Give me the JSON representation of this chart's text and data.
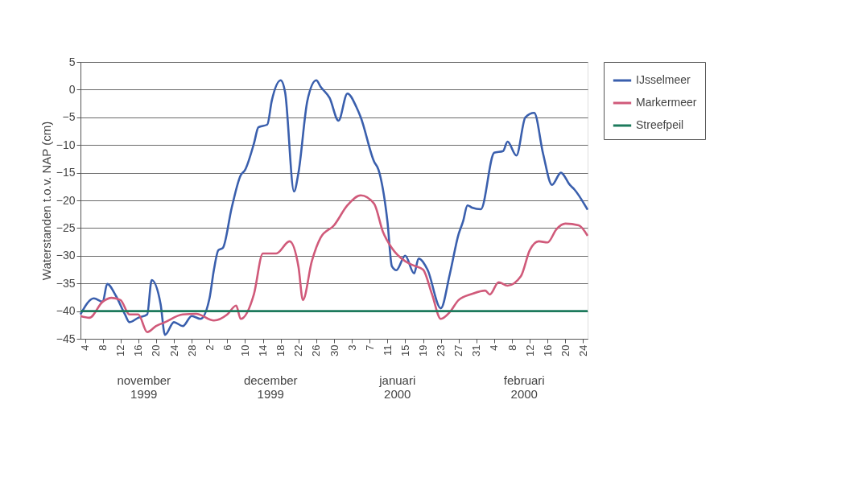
{
  "chart_data": {
    "type": "line",
    "ylabel": "Waterstanden t.o.v. NAP (cm)",
    "xlim": [
      "1999-11-03",
      "2000-02-25"
    ],
    "ylim": [
      -45,
      5
    ],
    "yticks": [
      -45,
      -40,
      -35,
      -30,
      -25,
      -20,
      -15,
      -10,
      -5,
      0,
      5
    ],
    "xticks": [
      {
        "value": "1999-11-04",
        "label": "4"
      },
      {
        "value": "1999-11-08",
        "label": "8"
      },
      {
        "value": "1999-11-12",
        "label": "12"
      },
      {
        "value": "1999-11-16",
        "label": "16"
      },
      {
        "value": "1999-11-20",
        "label": "20"
      },
      {
        "value": "1999-11-24",
        "label": "24"
      },
      {
        "value": "1999-11-28",
        "label": "28"
      },
      {
        "value": "1999-12-02",
        "label": "2"
      },
      {
        "value": "1999-12-06",
        "label": "6"
      },
      {
        "value": "1999-12-10",
        "label": "10"
      },
      {
        "value": "1999-12-14",
        "label": "14"
      },
      {
        "value": "1999-12-18",
        "label": "18"
      },
      {
        "value": "1999-12-22",
        "label": "22"
      },
      {
        "value": "1999-12-26",
        "label": "26"
      },
      {
        "value": "1999-12-30",
        "label": "30"
      },
      {
        "value": "2000-01-03",
        "label": "3"
      },
      {
        "value": "2000-01-07",
        "label": "7"
      },
      {
        "value": "2000-01-11",
        "label": "11"
      },
      {
        "value": "2000-01-15",
        "label": "15"
      },
      {
        "value": "2000-01-19",
        "label": "19"
      },
      {
        "value": "2000-01-23",
        "label": "23"
      },
      {
        "value": "2000-01-27",
        "label": "27"
      },
      {
        "value": "2000-01-31",
        "label": "31"
      },
      {
        "value": "2000-02-04",
        "label": "4"
      },
      {
        "value": "2000-02-08",
        "label": "8"
      },
      {
        "value": "2000-02-12",
        "label": "12"
      },
      {
        "value": "2000-02-16",
        "label": "16"
      },
      {
        "value": "2000-02-20",
        "label": "20"
      },
      {
        "value": "2000-02-24",
        "label": "24"
      }
    ],
    "grid": "y",
    "legend": "right",
    "line_style": "solid",
    "marker": "none",
    "annotations": [
      "november\n1999",
      "december\n1999",
      "januari\n2000",
      "februari\n2000"
    ],
    "series": [
      {
        "name": "IJsselmeer",
        "color": "#3a5fad",
        "x": [
          "1999-11-03",
          "1999-11-06",
          "1999-11-08",
          "1999-11-09",
          "1999-11-11",
          "1999-11-13",
          "1999-11-14",
          "1999-11-16",
          "1999-11-18",
          "1999-11-19",
          "1999-11-21",
          "1999-11-22",
          "1999-11-24",
          "1999-11-26",
          "1999-11-28",
          "1999-11-30",
          "1999-12-02",
          "1999-12-03",
          "1999-12-04",
          "1999-12-05",
          "1999-12-07",
          "1999-12-09",
          "1999-12-10",
          "1999-12-12",
          "1999-12-13",
          "1999-12-15",
          "1999-12-16",
          "1999-12-18",
          "1999-12-19",
          "1999-12-21",
          "1999-12-22",
          "1999-12-24",
          "1999-12-26",
          "1999-12-27",
          "1999-12-29",
          "1999-12-31",
          "2000-01-02",
          "2000-01-04",
          "2000-01-05",
          "2000-01-08",
          "2000-01-09",
          "2000-01-11",
          "2000-01-12",
          "2000-01-13",
          "2000-01-15",
          "2000-01-17",
          "2000-01-18",
          "2000-01-20",
          "2000-01-23",
          "2000-01-25",
          "2000-01-27",
          "2000-01-28",
          "2000-01-29",
          "2000-01-30",
          "2000-02-01",
          "2000-02-04",
          "2000-02-06",
          "2000-02-07",
          "2000-02-09",
          "2000-02-11",
          "2000-02-13",
          "2000-02-15",
          "2000-02-17",
          "2000-02-19",
          "2000-02-21",
          "2000-02-22",
          "2000-02-25"
        ],
        "values": [
          -40.6,
          -37.7,
          -38.3,
          -35.1,
          -37.3,
          -40.6,
          -42,
          -41.2,
          -40.6,
          -34.4,
          -38.7,
          -44.3,
          -42,
          -42.7,
          -40.9,
          -41.4,
          -37.7,
          -32.5,
          -29,
          -28.6,
          -21.3,
          -15.5,
          -14.5,
          -9.7,
          -6.8,
          -6.3,
          -2,
          1.7,
          -0.5,
          -18.4,
          -15,
          -2,
          1.7,
          0.5,
          -1.5,
          -5.6,
          -0.7,
          -3.1,
          -5,
          -13,
          -14.5,
          -23.8,
          -31.9,
          -32.6,
          -30,
          -33.2,
          -30.5,
          -32.5,
          -39.5,
          -33.4,
          -26.1,
          -23.8,
          -20.9,
          -21.3,
          -21.6,
          -11.4,
          -11.1,
          -9.4,
          -11.9,
          -5,
          -4.2,
          -11.6,
          -17.2,
          -15,
          -17.2,
          -18,
          -21.7
        ]
      },
      {
        "name": "Markermeer",
        "color": "#d05a7a",
        "x": [
          "1999-11-03",
          "1999-11-05",
          "1999-11-08",
          "1999-11-10",
          "1999-11-12",
          "1999-11-14",
          "1999-11-16",
          "1999-11-18",
          "1999-11-20",
          "1999-11-22",
          "1999-11-26",
          "1999-11-29",
          "1999-12-03",
          "1999-12-06",
          "1999-12-08",
          "1999-12-09",
          "1999-12-12",
          "1999-12-14",
          "1999-12-17",
          "1999-12-20",
          "1999-12-22",
          "1999-12-23",
          "1999-12-25",
          "1999-12-27",
          "1999-12-30",
          "2000-01-02",
          "2000-01-05",
          "2000-01-08",
          "2000-01-10",
          "2000-01-12",
          "2000-01-15",
          "2000-01-17",
          "2000-01-19",
          "2000-01-21",
          "2000-01-23",
          "2000-01-25",
          "2000-01-27",
          "2000-01-30",
          "2000-02-02",
          "2000-02-03",
          "2000-02-05",
          "2000-02-07",
          "2000-02-10",
          "2000-02-12",
          "2000-02-14",
          "2000-02-16",
          "2000-02-18",
          "2000-02-20",
          "2000-02-23",
          "2000-02-25"
        ],
        "values": [
          -40.9,
          -41.2,
          -38.3,
          -37.6,
          -38,
          -40.6,
          -40.6,
          -43.8,
          -42.7,
          -42,
          -40.6,
          -40.5,
          -41.7,
          -40.6,
          -39,
          -41.4,
          -36.9,
          -29.6,
          -29.6,
          -27.4,
          -32,
          -38,
          -31,
          -26.7,
          -24.5,
          -20.9,
          -19.1,
          -20.6,
          -25.7,
          -28.6,
          -31,
          -31.8,
          -32.5,
          -36.9,
          -41.4,
          -40.2,
          -38,
          -36.9,
          -36.3,
          -37,
          -34.8,
          -35.4,
          -33.7,
          -29,
          -27.4,
          -27.6,
          -25.2,
          -24.2,
          -24.5,
          -26.4
        ]
      },
      {
        "name": "Streefpeil",
        "color": "#1d7a5c",
        "x": [
          "1999-11-03",
          "2000-02-25"
        ],
        "values": [
          -40,
          -40
        ]
      }
    ]
  }
}
